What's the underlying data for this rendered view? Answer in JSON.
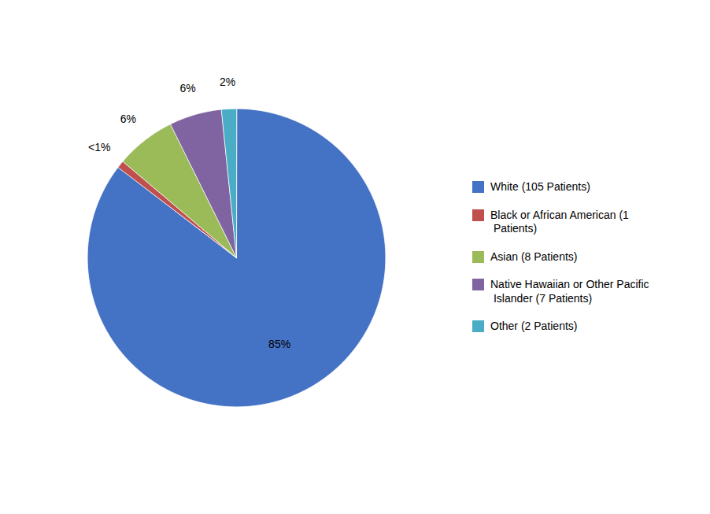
{
  "chart_data": {
    "type": "pie",
    "categories": [
      "White (105 Patients)",
      "Black or African American (1\n Patients)",
      "Asian (8 Patients)",
      "Native Hawaiian or Other Pacific\n Islander (7 Patients)",
      "Other (2 Patients)"
    ],
    "values": [
      85.37,
      0.81,
      6.5,
      5.69,
      1.63
    ],
    "value_labels": [
      "85%",
      "<1%",
      "6%",
      "6%",
      "2%"
    ],
    "colors": [
      "#4472C4",
      "#C0504D",
      "#9BBB59",
      "#8064A2",
      "#4BACC6"
    ],
    "data_labels": true,
    "legend": "right"
  }
}
